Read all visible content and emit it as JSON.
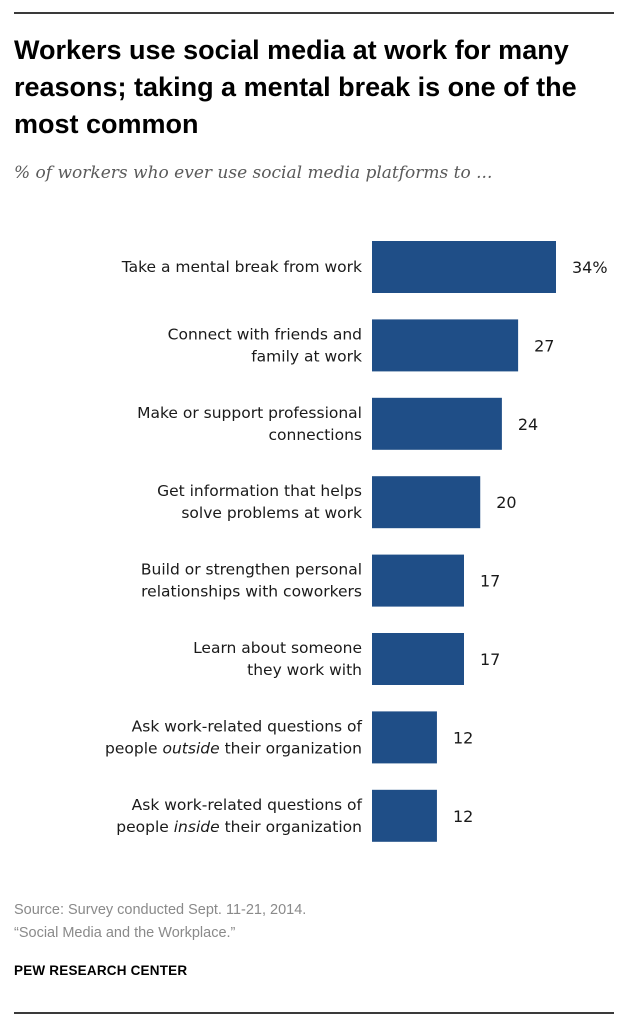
{
  "title": "Workers use social media at work for many reasons; taking a mental break is one of the most common",
  "subtitle": "% of workers who ever use social media platforms to ...",
  "chart_data": {
    "type": "bar",
    "orientation": "horizontal",
    "categories": [
      {
        "lines": [
          "Take a mental break from work"
        ]
      },
      {
        "lines": [
          "Connect with friends and",
          "family at work"
        ]
      },
      {
        "lines": [
          "Make or support professional",
          "connections"
        ]
      },
      {
        "lines": [
          "Get information that helps",
          "solve problems at work"
        ]
      },
      {
        "lines": [
          "Build or strengthen personal",
          "relationships with coworkers"
        ]
      },
      {
        "lines": [
          "Learn about someone",
          "they work with"
        ]
      },
      {
        "lines": [
          "Ask work-related questions of",
          "people |outside| their organization"
        ]
      },
      {
        "lines": [
          "Ask work-related questions of",
          "people |inside| their organization"
        ]
      }
    ],
    "values": [
      34,
      27,
      24,
      20,
      17,
      17,
      12,
      12
    ],
    "value_labels": [
      "34%",
      "27",
      "24",
      "20",
      "17",
      "17",
      "12",
      "12"
    ],
    "bar_color": "#1f4e87",
    "xlim": [
      0,
      34
    ]
  },
  "source": {
    "line1": "Source: Survey conducted Sept. 11-21, 2014.",
    "line2": "“Social Media and the Workplace.”"
  },
  "brand": "PEW RESEARCH CENTER"
}
